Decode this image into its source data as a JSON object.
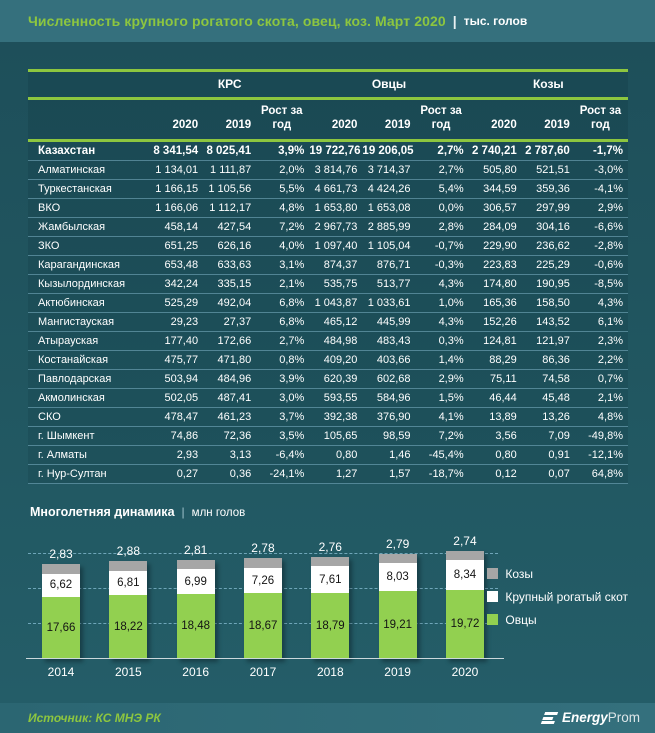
{
  "title": {
    "main": "Численность крупного рогатого скота, овец, коз. Март 2020",
    "sep": "|",
    "unit": "тыс. голов"
  },
  "table": {
    "groups": [
      "КРС",
      "Овцы",
      "Козы"
    ],
    "sub_headers": [
      "2020",
      "2019",
      "Рост за год",
      "2020",
      "2019",
      "Рост за год",
      "2020",
      "2019",
      "Рост за год"
    ],
    "rows": [
      {
        "name": "Казахстан",
        "bold": true,
        "values": [
          "8 341,54",
          "8 025,41",
          "3,9%",
          "19 722,76",
          "19 206,05",
          "2,7%",
          "2 740,21",
          "2 787,60",
          "-1,7%"
        ]
      },
      {
        "name": "Алматинская",
        "bold": false,
        "values": [
          "1 134,01",
          "1 111,87",
          "2,0%",
          "3 814,76",
          "3 714,37",
          "2,7%",
          "505,80",
          "521,51",
          "-3,0%"
        ]
      },
      {
        "name": "Туркестанская",
        "bold": false,
        "values": [
          "1 166,15",
          "1 105,56",
          "5,5%",
          "4 661,73",
          "4 424,26",
          "5,4%",
          "344,59",
          "359,36",
          "-4,1%"
        ]
      },
      {
        "name": "ВКО",
        "bold": false,
        "values": [
          "1 166,06",
          "1 112,17",
          "4,8%",
          "1 653,80",
          "1 653,08",
          "0,0%",
          "306,57",
          "297,99",
          "2,9%"
        ]
      },
      {
        "name": "Жамбылская",
        "bold": false,
        "values": [
          "458,14",
          "427,54",
          "7,2%",
          "2 967,73",
          "2 885,99",
          "2,8%",
          "284,09",
          "304,16",
          "-6,6%"
        ]
      },
      {
        "name": "ЗКО",
        "bold": false,
        "values": [
          "651,25",
          "626,16",
          "4,0%",
          "1 097,40",
          "1 105,04",
          "-0,7%",
          "229,90",
          "236,62",
          "-2,8%"
        ]
      },
      {
        "name": "Карагандинская",
        "bold": false,
        "values": [
          "653,48",
          "633,63",
          "3,1%",
          "874,37",
          "876,71",
          "-0,3%",
          "223,83",
          "225,29",
          "-0,6%"
        ]
      },
      {
        "name": "Кызылординская",
        "bold": false,
        "values": [
          "342,24",
          "335,15",
          "2,1%",
          "535,75",
          "513,77",
          "4,3%",
          "174,80",
          "190,95",
          "-8,5%"
        ]
      },
      {
        "name": "Актюбинская",
        "bold": false,
        "values": [
          "525,29",
          "492,04",
          "6,8%",
          "1 043,87",
          "1 033,61",
          "1,0%",
          "165,36",
          "158,50",
          "4,3%"
        ]
      },
      {
        "name": "Мангистауская",
        "bold": false,
        "values": [
          "29,23",
          "27,37",
          "6,8%",
          "465,12",
          "445,99",
          "4,3%",
          "152,26",
          "143,52",
          "6,1%"
        ]
      },
      {
        "name": "Атырауская",
        "bold": false,
        "values": [
          "177,40",
          "172,66",
          "2,7%",
          "484,98",
          "483,43",
          "0,3%",
          "124,81",
          "121,97",
          "2,3%"
        ]
      },
      {
        "name": "Костанайская",
        "bold": false,
        "values": [
          "475,77",
          "471,80",
          "0,8%",
          "409,20",
          "403,66",
          "1,4%",
          "88,29",
          "86,36",
          "2,2%"
        ]
      },
      {
        "name": "Павлодарская",
        "bold": false,
        "values": [
          "503,94",
          "484,96",
          "3,9%",
          "620,39",
          "602,68",
          "2,9%",
          "75,11",
          "74,58",
          "0,7%"
        ]
      },
      {
        "name": "Акмолинская",
        "bold": false,
        "values": [
          "502,05",
          "487,41",
          "3,0%",
          "593,55",
          "584,96",
          "1,5%",
          "46,44",
          "45,48",
          "2,1%"
        ]
      },
      {
        "name": "СКО",
        "bold": false,
        "values": [
          "478,47",
          "461,23",
          "3,7%",
          "392,38",
          "376,90",
          "4,1%",
          "13,89",
          "13,26",
          "4,8%"
        ]
      },
      {
        "name": "г. Шымкент",
        "bold": false,
        "values": [
          "74,86",
          "72,36",
          "3,5%",
          "105,65",
          "98,59",
          "7,2%",
          "3,56",
          "7,09",
          "-49,8%"
        ]
      },
      {
        "name": "г. Алматы",
        "bold": false,
        "values": [
          "2,93",
          "3,13",
          "-6,4%",
          "0,80",
          "1,46",
          "-45,4%",
          "0,80",
          "0,91",
          "-12,1%"
        ]
      },
      {
        "name": "г. Нур-Султан",
        "bold": false,
        "values": [
          "0,27",
          "0,36",
          "-24,1%",
          "1,27",
          "1,57",
          "-18,7%",
          "0,12",
          "0,07",
          "64,8%"
        ]
      }
    ]
  },
  "chart_section": {
    "title": "Многолетняя динамика",
    "sep": "|",
    "unit": "млн голов"
  },
  "chart_data": {
    "type": "bar",
    "stacked": true,
    "title": "Многолетняя динамика",
    "ylabel": "млн голов",
    "categories": [
      "2014",
      "2015",
      "2016",
      "2017",
      "2018",
      "2019",
      "2020"
    ],
    "series": [
      {
        "name": "Овцы",
        "color": "#92d050",
        "values": [
          17.66,
          18.22,
          18.48,
          18.67,
          18.79,
          19.21,
          19.72
        ],
        "labels": [
          "17,66",
          "18,22",
          "18,48",
          "18,67",
          "18,79",
          "19,21",
          "19,72"
        ],
        "label_inside": true
      },
      {
        "name": "Крупный рогатый скот",
        "color": "#ffffff",
        "values": [
          6.62,
          6.81,
          6.99,
          7.26,
          7.61,
          8.03,
          8.34
        ],
        "labels": [
          "6,62",
          "6,81",
          "6,99",
          "7,26",
          "7,61",
          "8,03",
          "8,34"
        ],
        "label_inside": true
      },
      {
        "name": "Козы",
        "color": "#a6a6a6",
        "values": [
          2.83,
          2.88,
          2.81,
          2.78,
          2.76,
          2.79,
          2.74
        ],
        "labels": [
          "2,83",
          "2,88",
          "2,81",
          "2,78",
          "2,76",
          "2,79",
          "2,74"
        ],
        "label_inside": false
      }
    ],
    "legend": [
      {
        "label": "Козы",
        "color": "#a6a6a6"
      },
      {
        "label": "Крупный рогатый скот",
        "color": "#ffffff"
      },
      {
        "label": "Овцы",
        "color": "#92d050"
      }
    ],
    "legend_position": "right",
    "ylim": [
      0,
      34
    ],
    "gridlines": [
      10,
      20,
      30
    ],
    "grid": "dashed"
  },
  "footer": {
    "source": "Источник: КС МНЭ РК",
    "logo_bold": "Energy",
    "logo_light": "Prom"
  },
  "colors": {
    "accent_green": "#8dc63f",
    "bar_green": "#92d050",
    "bar_gray": "#a6a6a6",
    "bar_white": "#ffffff",
    "title_band": "#35707d",
    "body_bg": "#215761",
    "separator": "#7eb2c6"
  }
}
